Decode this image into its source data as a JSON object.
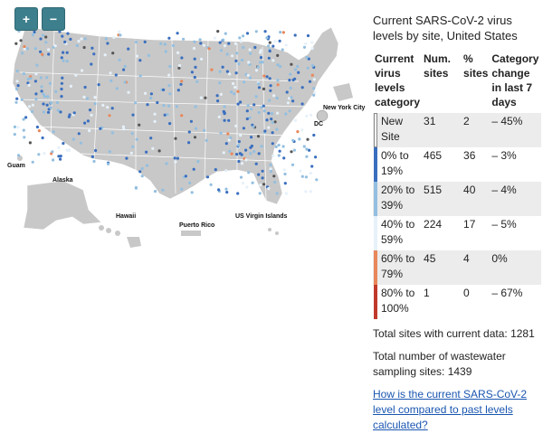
{
  "map": {
    "zoom_in_label": "+",
    "zoom_out_label": "−",
    "labels": {
      "guam": "Guam",
      "alaska": "Alaska",
      "hawaii": "Hawaii",
      "puerto_rico": "Puerto Rico",
      "usvi": "US Virgin Islands",
      "nyc": "New York City",
      "dc": "DC"
    }
  },
  "legend": {
    "title": "Current SARS-CoV-2 virus levels by site, United States",
    "headers": {
      "category": "Current virus levels category",
      "num_sites": "Num. sites",
      "pct_sites": "% sites",
      "change": "Category change in last 7 days"
    },
    "rows": [
      {
        "category": "New Site",
        "num": "31",
        "pct": "2",
        "change": "– 45%",
        "color": "#ffffff"
      },
      {
        "category": "0% to 19%",
        "num": "465",
        "pct": "36",
        "change": "– 3%",
        "color": "#3a6fbf"
      },
      {
        "category": "20% to 39%",
        "num": "515",
        "pct": "40",
        "change": "– 4%",
        "color": "#93bfe0"
      },
      {
        "category": "40% to 59%",
        "num": "224",
        "pct": "17",
        "change": "– 5%",
        "color": "#e6f1fa"
      },
      {
        "category": "60% to 79%",
        "num": "45",
        "pct": "4",
        "change": "0%",
        "color": "#e8875a"
      },
      {
        "category": "80% to 100%",
        "num": "1",
        "pct": "0",
        "change": "– 67%",
        "color": "#c0392b"
      }
    ]
  },
  "footer": {
    "total_current": "Total sites with current data: 1281",
    "total_sampling": "Total number of wastewater sampling sites: 1439",
    "link_text": "How is the current SARS-CoV-2 level compared to past levels calculated?"
  },
  "colors": {
    "land": "#c8c8c8",
    "border": "#ffffff",
    "zoom_button": "#3d7f8c"
  }
}
